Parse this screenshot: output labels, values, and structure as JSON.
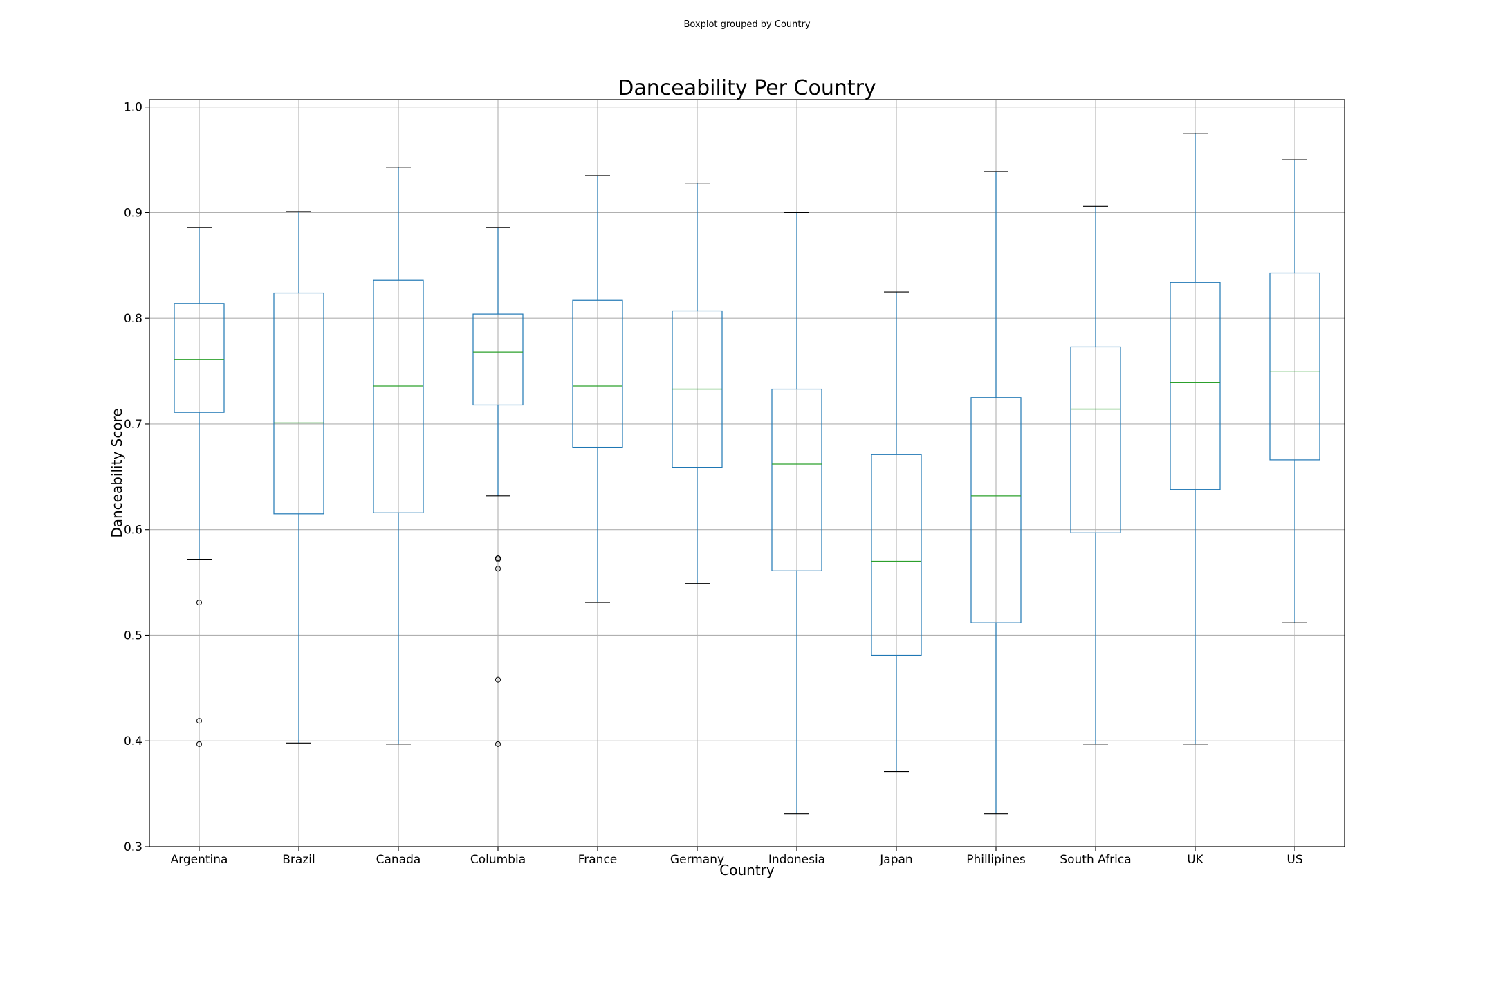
{
  "suptitle": "Boxplot grouped by Country",
  "chart_data": {
    "type": "boxplot",
    "title": "Danceability Per Country",
    "xlabel": "Country",
    "ylabel": "Danceability Score",
    "ylim": [
      0.3,
      1.007
    ],
    "yticks": [
      "0.3",
      "0.4",
      "0.5",
      "0.6",
      "0.7",
      "0.8",
      "0.9",
      "1.0"
    ],
    "grid": true,
    "colors": {
      "box": "#1f77b4",
      "median": "#2ca02c",
      "cap": "#000000",
      "flier": "#000000",
      "grid": "#b0b0b0"
    },
    "categories": [
      "Argentina",
      "Brazil",
      "Canada",
      "Columbia",
      "France",
      "Germany",
      "Indonesia",
      "Japan",
      "Phillipines",
      "South Africa",
      "UK",
      "US"
    ],
    "boxes": [
      {
        "whislo": 0.572,
        "q1": 0.711,
        "med": 0.761,
        "q3": 0.814,
        "whishi": 0.886,
        "fliers": [
          0.531,
          0.419,
          0.397
        ]
      },
      {
        "whislo": 0.398,
        "q1": 0.615,
        "med": 0.701,
        "q3": 0.824,
        "whishi": 0.901,
        "fliers": []
      },
      {
        "whislo": 0.397,
        "q1": 0.616,
        "med": 0.736,
        "q3": 0.836,
        "whishi": 0.943,
        "fliers": []
      },
      {
        "whislo": 0.632,
        "q1": 0.718,
        "med": 0.768,
        "q3": 0.804,
        "whishi": 0.886,
        "fliers": [
          0.573,
          0.572,
          0.563,
          0.458,
          0.397
        ]
      },
      {
        "whislo": 0.531,
        "q1": 0.678,
        "med": 0.736,
        "q3": 0.817,
        "whishi": 0.935,
        "fliers": []
      },
      {
        "whislo": 0.549,
        "q1": 0.659,
        "med": 0.733,
        "q3": 0.807,
        "whishi": 0.928,
        "fliers": []
      },
      {
        "whislo": 0.331,
        "q1": 0.561,
        "med": 0.662,
        "q3": 0.733,
        "whishi": 0.9,
        "fliers": []
      },
      {
        "whislo": 0.371,
        "q1": 0.481,
        "med": 0.57,
        "q3": 0.671,
        "whishi": 0.825,
        "fliers": []
      },
      {
        "whislo": 0.331,
        "q1": 0.512,
        "med": 0.632,
        "q3": 0.725,
        "whishi": 0.939,
        "fliers": []
      },
      {
        "whislo": 0.397,
        "q1": 0.597,
        "med": 0.714,
        "q3": 0.773,
        "whishi": 0.906,
        "fliers": []
      },
      {
        "whislo": 0.397,
        "q1": 0.638,
        "med": 0.739,
        "q3": 0.834,
        "whishi": 0.975,
        "fliers": []
      },
      {
        "whislo": 0.512,
        "q1": 0.666,
        "med": 0.75,
        "q3": 0.843,
        "whishi": 0.95,
        "fliers": []
      }
    ]
  }
}
